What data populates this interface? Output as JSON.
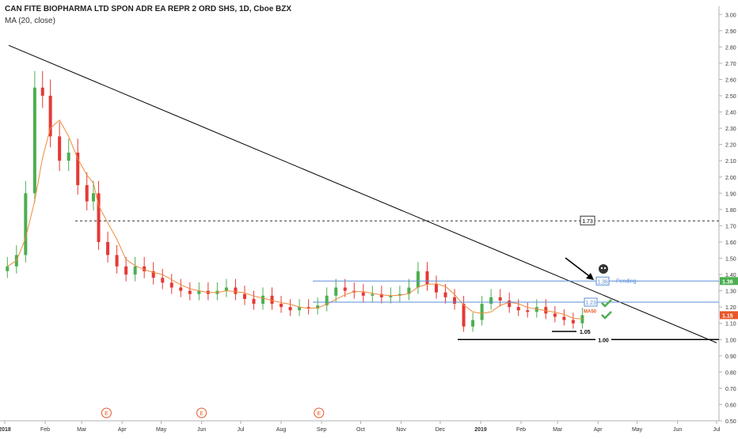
{
  "header": {
    "symbol_line": "CAN FITE BIOPHARMA LTD SPON ADR EA REPR 2 ORD SHS, 1D, Cboe BZX",
    "indicator_line": "MA (20, close)"
  },
  "chart_data": {
    "type": "candlestick",
    "ylim": [
      0.5,
      3.05
    ],
    "y_ticks": [
      "0.50",
      "0.60",
      "0.70",
      "0.80",
      "0.90",
      "1.00",
      "1.10",
      "1.20",
      "1.30",
      "1.40",
      "1.50",
      "1.60",
      "1.70",
      "1.80",
      "1.90",
      "2.00",
      "2.10",
      "2.20",
      "2.30",
      "2.40",
      "2.50",
      "2.60",
      "2.70",
      "2.80",
      "2.90",
      "3.00"
    ],
    "x_ticks": [
      "2018",
      "Feb",
      "Mar",
      "Apr",
      "May",
      "Jun",
      "Jul",
      "Aug",
      "Sep",
      "Oct",
      "Nov",
      "Dec",
      "2019",
      "Feb",
      "Mar",
      "Apr",
      "May",
      "Jun",
      "Jul"
    ],
    "x_axis_range": [
      "2018-01-01",
      "2019-07-01"
    ],
    "price_labels": [
      {
        "text": "1.36",
        "value": 1.36,
        "color": "#4caf50"
      },
      {
        "text": "1.15",
        "value": 1.15,
        "color": "#e8562a"
      }
    ],
    "earnings_markers": [
      {
        "label": "E",
        "date": "2018-03-20"
      },
      {
        "label": "E",
        "date": "2018-06-01"
      },
      {
        "label": "E",
        "date": "2018-08-30"
      }
    ],
    "annotations": {
      "resistance_label": "1.73",
      "resistance_level": 1.73,
      "level_136_label": "1.36",
      "level_136": 1.36,
      "level_123_label": "1.23",
      "level_123": 1.23,
      "pending_text": "Pending",
      "ma50_text": "MA50",
      "low_label": "1.05",
      "low_level": 1.05,
      "support_label": "1.00",
      "support_level": 1.0,
      "trendline": [
        [
          "2018-01-04",
          2.81
        ],
        [
          "2019-07-01",
          0.98
        ]
      ]
    },
    "colors": {
      "up": "#4caf50",
      "down": "#e53935",
      "ma": "#f08a3c",
      "level": "#5b8fd6",
      "trend": "#000000"
    },
    "series": [
      {
        "date": "2018-01-03",
        "close": 1.45
      },
      {
        "date": "2018-01-10",
        "close": 1.52
      },
      {
        "date": "2018-01-17",
        "close": 1.9
      },
      {
        "date": "2018-01-24",
        "close": 2.55
      },
      {
        "date": "2018-01-30",
        "close": 2.5
      },
      {
        "date": "2018-02-05",
        "close": 2.25
      },
      {
        "date": "2018-02-12",
        "close": 2.1
      },
      {
        "date": "2018-02-19",
        "close": 2.15
      },
      {
        "date": "2018-02-26",
        "close": 1.95
      },
      {
        "date": "2018-03-05",
        "close": 1.85
      },
      {
        "date": "2018-03-10",
        "close": 1.9
      },
      {
        "date": "2018-03-14",
        "close": 1.6
      },
      {
        "date": "2018-03-21",
        "close": 1.52
      },
      {
        "date": "2018-03-28",
        "close": 1.45
      },
      {
        "date": "2018-04-04",
        "close": 1.4
      },
      {
        "date": "2018-04-11",
        "close": 1.45
      },
      {
        "date": "2018-04-18",
        "close": 1.42
      },
      {
        "date": "2018-04-25",
        "close": 1.38
      },
      {
        "date": "2018-05-02",
        "close": 1.35
      },
      {
        "date": "2018-05-09",
        "close": 1.32
      },
      {
        "date": "2018-05-16",
        "close": 1.3
      },
      {
        "date": "2018-05-23",
        "close": 1.28
      },
      {
        "date": "2018-05-30",
        "close": 1.3
      },
      {
        "date": "2018-06-06",
        "close": 1.28
      },
      {
        "date": "2018-06-13",
        "close": 1.3
      },
      {
        "date": "2018-06-20",
        "close": 1.32
      },
      {
        "date": "2018-06-27",
        "close": 1.28
      },
      {
        "date": "2018-07-04",
        "close": 1.25
      },
      {
        "date": "2018-07-11",
        "close": 1.22
      },
      {
        "date": "2018-07-18",
        "close": 1.27
      },
      {
        "date": "2018-07-25",
        "close": 1.22
      },
      {
        "date": "2018-08-01",
        "close": 1.2
      },
      {
        "date": "2018-08-08",
        "close": 1.18
      },
      {
        "date": "2018-08-15",
        "close": 1.2
      },
      {
        "date": "2018-08-22",
        "close": 1.19
      },
      {
        "date": "2018-08-29",
        "close": 1.21
      },
      {
        "date": "2018-09-05",
        "close": 1.27
      },
      {
        "date": "2018-09-12",
        "close": 1.32
      },
      {
        "date": "2018-09-19",
        "close": 1.3
      },
      {
        "date": "2018-09-26",
        "close": 1.29
      },
      {
        "date": "2018-10-03",
        "close": 1.27
      },
      {
        "date": "2018-10-10",
        "close": 1.28
      },
      {
        "date": "2018-10-17",
        "close": 1.26
      },
      {
        "date": "2018-10-24",
        "close": 1.27
      },
      {
        "date": "2018-10-31",
        "close": 1.28
      },
      {
        "date": "2018-11-07",
        "close": 1.32
      },
      {
        "date": "2018-11-14",
        "close": 1.42
      },
      {
        "date": "2018-11-21",
        "close": 1.34
      },
      {
        "date": "2018-11-28",
        "close": 1.29
      },
      {
        "date": "2018-12-05",
        "close": 1.26
      },
      {
        "date": "2018-12-12",
        "close": 1.22
      },
      {
        "date": "2018-12-19",
        "close": 1.08
      },
      {
        "date": "2018-12-26",
        "close": 1.12
      },
      {
        "date": "2019-01-02",
        "close": 1.22
      },
      {
        "date": "2019-01-09",
        "close": 1.26
      },
      {
        "date": "2019-01-16",
        "close": 1.24
      },
      {
        "date": "2019-01-23",
        "close": 1.2
      },
      {
        "date": "2019-01-30",
        "close": 1.18
      },
      {
        "date": "2019-02-06",
        "close": 1.17
      },
      {
        "date": "2019-02-13",
        "close": 1.2
      },
      {
        "date": "2019-02-20",
        "close": 1.16
      },
      {
        "date": "2019-02-27",
        "close": 1.14
      },
      {
        "date": "2019-03-06",
        "close": 1.12
      },
      {
        "date": "2019-03-13",
        "close": 1.1
      },
      {
        "date": "2019-03-20",
        "close": 1.15
      }
    ]
  }
}
